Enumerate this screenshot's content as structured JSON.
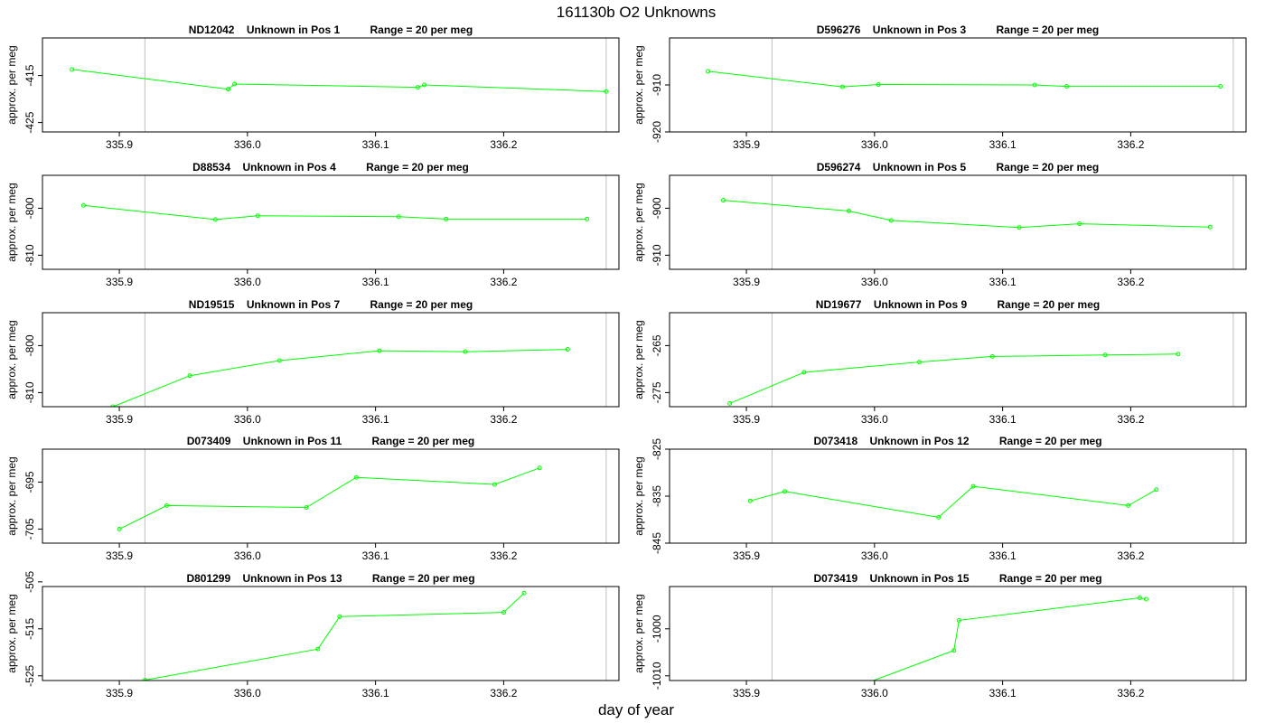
{
  "title": "161130b  O2 Unknowns",
  "xlabel": "day of year",
  "ylabel": "approx. per meg",
  "chart_data": [
    {
      "type": "line",
      "panel_title": "ND12042    Unknown in Pos 1          Range = 20 per meg",
      "xlim": [
        335.84,
        336.29
      ],
      "ylim": [
        -427,
        -407
      ],
      "xticks": [
        335.9,
        336.0,
        336.1,
        336.2
      ],
      "yticks": [
        -415,
        -425
      ],
      "vlines": [
        335.92,
        336.28
      ],
      "color": "#00ff00",
      "x": [
        335.863,
        335.985,
        335.99,
        336.133,
        336.138,
        336.28
      ],
      "y": [
        -413.7,
        -417.9,
        -416.8,
        -417.5,
        -417.0,
        -418.4
      ]
    },
    {
      "type": "line",
      "panel_title": "D596276    Unknown in Pos 3          Range = 20 per meg",
      "xlim": [
        335.84,
        336.29
      ],
      "ylim": [
        -920,
        -900
      ],
      "xticks": [
        335.9,
        336.0,
        336.1,
        336.2
      ],
      "yticks": [
        -910,
        -920
      ],
      "vlines": [
        335.92,
        336.28
      ],
      "color": "#00ff00",
      "x": [
        335.87,
        335.975,
        336.003,
        336.125,
        336.15,
        336.27
      ],
      "y": [
        -907.1,
        -910.4,
        -909.9,
        -910.0,
        -910.3,
        -910.3
      ]
    },
    {
      "type": "line",
      "panel_title": "D88534    Unknown in Pos 4          Range = 20 per meg",
      "xlim": [
        335.84,
        336.29
      ],
      "ylim": [
        -813,
        -793
      ],
      "xticks": [
        335.9,
        336.0,
        336.1,
        336.2
      ],
      "yticks": [
        -800,
        -810
      ],
      "vlines": [
        335.92,
        336.28
      ],
      "color": "#00ff00",
      "x": [
        335.872,
        335.975,
        336.008,
        336.118,
        336.155,
        336.265
      ],
      "y": [
        -799.4,
        -802.4,
        -801.6,
        -801.8,
        -802.3,
        -802.3
      ]
    },
    {
      "type": "line",
      "panel_title": "D596274    Unknown in Pos 5          Range = 20 per meg",
      "xlim": [
        335.84,
        336.29
      ],
      "ylim": [
        -913,
        -893
      ],
      "xticks": [
        335.9,
        336.0,
        336.1,
        336.2
      ],
      "yticks": [
        -900,
        -910
      ],
      "vlines": [
        335.92,
        336.28
      ],
      "color": "#00ff00",
      "x": [
        335.882,
        335.98,
        336.013,
        336.113,
        336.16,
        336.262
      ],
      "y": [
        -898.3,
        -900.6,
        -902.6,
        -904.1,
        -903.3,
        -904.0
      ]
    },
    {
      "type": "line",
      "panel_title": "ND19515    Unknown in Pos 7          Range = 20 per meg",
      "xlim": [
        335.84,
        336.29
      ],
      "ylim": [
        -813,
        -793
      ],
      "xticks": [
        335.9,
        336.0,
        336.1,
        336.2
      ],
      "yticks": [
        -800,
        -810
      ],
      "vlines": [
        335.92,
        336.28
      ],
      "color": "#00ff00",
      "x": [
        335.895,
        335.955,
        336.025,
        336.103,
        336.17,
        336.25
      ],
      "y": [
        -813.0,
        -806.4,
        -803.2,
        -801.1,
        -801.3,
        -800.8
      ]
    },
    {
      "type": "line",
      "panel_title": "ND19677    Unknown in Pos 9          Range = 20 per meg",
      "xlim": [
        335.84,
        336.29
      ],
      "ylim": [
        -278,
        -258
      ],
      "xticks": [
        335.9,
        336.0,
        336.1,
        336.2
      ],
      "yticks": [
        -265,
        -275
      ],
      "vlines": [
        335.92,
        336.28
      ],
      "color": "#00ff00",
      "x": [
        335.887,
        335.945,
        336.035,
        336.092,
        336.18,
        336.237
      ],
      "y": [
        -277.3,
        -270.7,
        -268.5,
        -267.3,
        -267.0,
        -266.8
      ]
    },
    {
      "type": "line",
      "panel_title": "D073409    Unknown in Pos 11          Range = 20 per meg",
      "xlim": [
        335.84,
        336.29
      ],
      "ylim": [
        -708,
        -688
      ],
      "xticks": [
        335.9,
        336.0,
        336.1,
        336.2
      ],
      "yticks": [
        -695,
        -705
      ],
      "vlines": [
        335.92,
        336.28
      ],
      "color": "#00ff00",
      "x": [
        335.9,
        335.937,
        336.046,
        336.085,
        336.193,
        336.228
      ],
      "y": [
        -705.0,
        -700.0,
        -700.4,
        -694.0,
        -695.5,
        -692.0
      ]
    },
    {
      "type": "line",
      "panel_title": "D073418    Unknown in Pos 12          Range = 20 per meg",
      "xlim": [
        335.84,
        336.29
      ],
      "ylim": [
        -845,
        -825
      ],
      "xticks": [
        335.9,
        336.0,
        336.1,
        336.2
      ],
      "yticks": [
        -825,
        -835,
        -845
      ],
      "vlines": [
        335.92,
        336.28
      ],
      "color": "#00ff00",
      "x": [
        335.903,
        335.93,
        336.05,
        336.077,
        336.198,
        336.22
      ],
      "y": [
        -836.0,
        -834.0,
        -839.5,
        -832.9,
        -837.0,
        -833.6
      ]
    },
    {
      "type": "line",
      "panel_title": "D801299    Unknown in Pos 13          Range = 20 per meg",
      "xlim": [
        335.84,
        336.29
      ],
      "ylim": [
        -526,
        -506
      ],
      "xticks": [
        335.9,
        336.0,
        336.1,
        336.2
      ],
      "yticks": [
        -505,
        -515,
        -525
      ],
      "vlines": [
        335.92,
        336.28
      ],
      "color": "#00ff00",
      "x": [
        335.9,
        335.92,
        336.055,
        336.072,
        336.2,
        336.216
      ],
      "y": [
        -527.5,
        -525.9,
        -519.3,
        -512.4,
        -511.5,
        -507.4
      ]
    },
    {
      "type": "line",
      "panel_title": "D073419    Unknown in Pos 15          Range = 20 per meg",
      "xlim": [
        335.84,
        336.29
      ],
      "ylim": [
        -1011,
        -991
      ],
      "xticks": [
        335.9,
        336.0,
        336.1,
        336.2
      ],
      "yticks": [
        -1000,
        -1010
      ],
      "vlines": [
        335.92,
        336.28
      ],
      "color": "#00ff00",
      "x": [
        335.95,
        336.062,
        336.066,
        336.207,
        336.212
      ],
      "y": [
        -1016.0,
        -1004.6,
        -998.2,
        -993.4,
        -993.7
      ]
    }
  ]
}
